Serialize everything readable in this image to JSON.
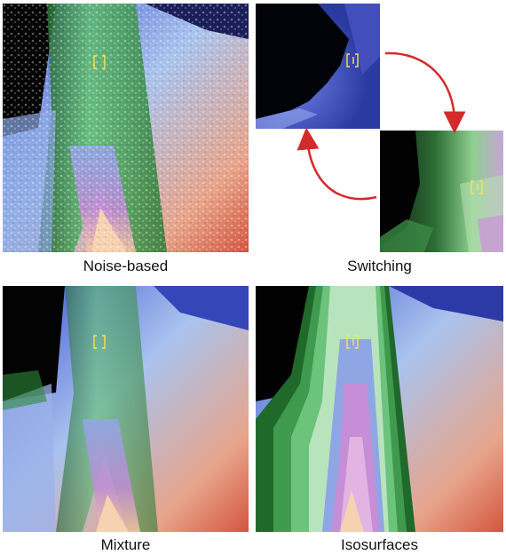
{
  "figure": {
    "captions": {
      "noise": "Noise-based",
      "switching": "Switching",
      "mixture": "Mixture",
      "iso": "Isosurfaces"
    },
    "colors": {
      "background": "#000000",
      "blue": "#5a6fe0",
      "light_blue": "#a8c4ee",
      "green": "#2f8a3a",
      "light_green": "#8fd49a",
      "pink": "#c98ad0",
      "salmon": "#e07a5f",
      "peach": "#f4c9a6",
      "marker": "#ffe24a",
      "arrow": "#d42a2a"
    }
  }
}
